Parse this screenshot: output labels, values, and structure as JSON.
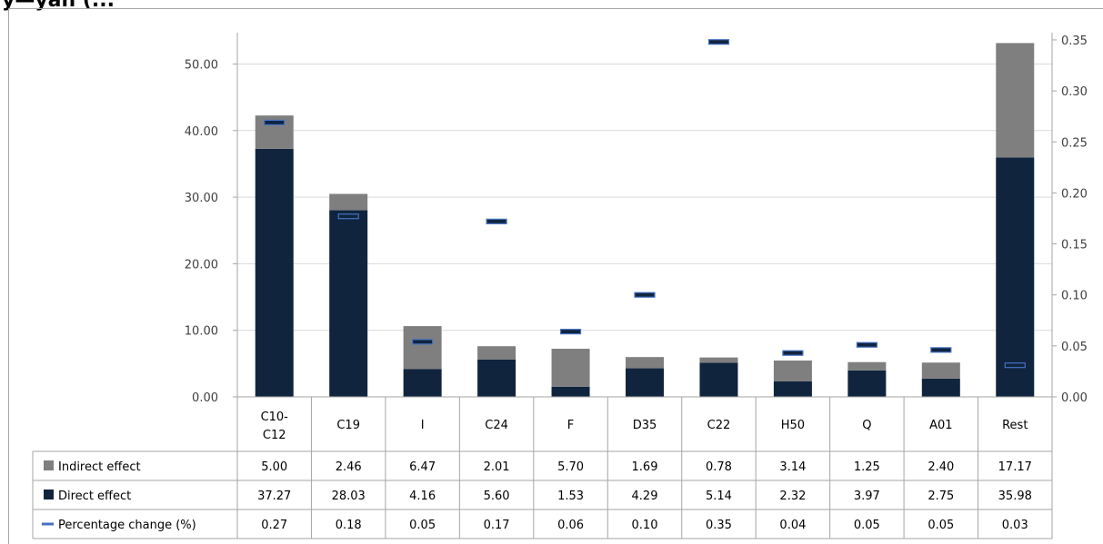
{
  "title_fragment": "y—yan (...",
  "chart_data": {
    "type": "bar",
    "stacked": true,
    "categories": [
      "C10-\nC12",
      "C19",
      "I",
      "C24",
      "F",
      "D35",
      "C22",
      "H50",
      "Q",
      "A01",
      "Rest"
    ],
    "series": [
      {
        "name": "Indirect effect",
        "type": "bar",
        "axis": "left",
        "color": "#7f7f7f",
        "values": [
          5.0,
          2.46,
          6.47,
          2.01,
          5.7,
          1.69,
          0.78,
          3.14,
          1.25,
          2.4,
          17.17
        ]
      },
      {
        "name": "Direct effect",
        "type": "bar",
        "axis": "left",
        "color": "#10243e",
        "values": [
          37.27,
          28.03,
          4.16,
          5.6,
          1.53,
          4.29,
          5.14,
          2.32,
          3.97,
          2.75,
          35.98
        ]
      },
      {
        "name": "Percentage change (%)",
        "type": "marker",
        "axis": "right",
        "color": "#4472c4",
        "values": [
          0.27,
          0.18,
          0.05,
          0.17,
          0.06,
          0.1,
          0.35,
          0.04,
          0.05,
          0.05,
          0.03
        ],
        "chart_values": [
          0.269,
          0.177,
          0.054,
          0.172,
          0.064,
          0.1,
          0.348,
          0.043,
          0.051,
          0.046,
          0.031
        ]
      }
    ],
    "y_left": {
      "ylim": [
        0,
        55
      ],
      "ticks": [
        "0.00",
        "10.00",
        "20.00",
        "30.00",
        "40.00",
        "50.00"
      ]
    },
    "y_right": {
      "ylim": [
        0,
        0.36
      ],
      "ticks": [
        "0.00",
        "0.05",
        "0.10",
        "0.15",
        "0.20",
        "0.25",
        "0.30",
        "0.35"
      ]
    },
    "gridlines": true,
    "legend_placement": "data-table",
    "data_table": {
      "rows": [
        {
          "label": "Indirect effect",
          "values": [
            "5.00",
            "2.46",
            "6.47",
            "2.01",
            "5.70",
            "1.69",
            "0.78",
            "3.14",
            "1.25",
            "2.40",
            "17.17"
          ]
        },
        {
          "label": "Direct effect",
          "values": [
            "37.27",
            "28.03",
            "4.16",
            "5.60",
            "1.53",
            "4.29",
            "5.14",
            "2.32",
            "3.97",
            "2.75",
            "35.98"
          ]
        },
        {
          "label": "Percentage change (%)",
          "values": [
            "0.27",
            "0.18",
            "0.05",
            "0.17",
            "0.06",
            "0.10",
            "0.35",
            "0.04",
            "0.05",
            "0.05",
            "0.03"
          ]
        }
      ]
    }
  }
}
